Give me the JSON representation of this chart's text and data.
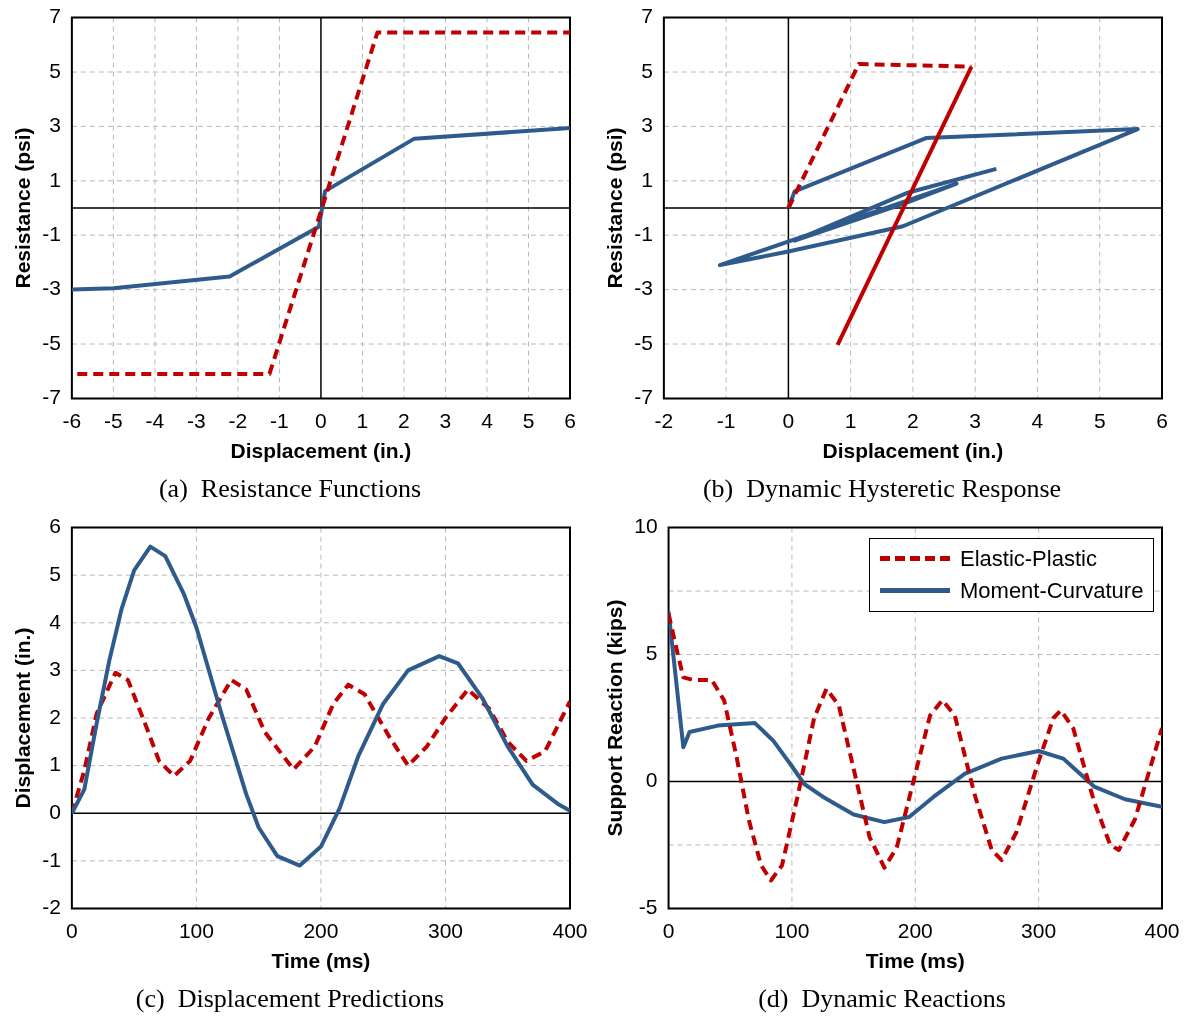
{
  "chart_data": [
    {
      "type": "line",
      "title": "(a)  Resistance Functions",
      "xlabel": "Displacement (in.)",
      "ylabel": "Resistance (psi)",
      "xlim": [
        -6,
        6
      ],
      "xticks": [
        -6,
        -5,
        -4,
        -3,
        -2,
        -1,
        0,
        1,
        2,
        3,
        4,
        5,
        6
      ],
      "ylim": [
        -7,
        7
      ],
      "yticks": [
        -7,
        -5,
        -3,
        -1,
        {
          "value": 0,
          "label": null
        },
        1,
        3,
        5,
        7
      ],
      "grid": true,
      "legend": false,
      "marker": "none",
      "series": [
        {
          "color": "#c00000",
          "line_style": "dashed",
          "x": [
            -5.87,
            -1.24,
            1.36,
            6
          ],
          "values": [
            -6.1,
            -6.1,
            6.45,
            6.45
          ]
        },
        {
          "color": "#2f5b8c",
          "line_style": "solid",
          "x": [
            -6,
            -5,
            -2.2,
            -0.05,
            0.1,
            2.25,
            6
          ],
          "values": [
            -3.0,
            -2.95,
            -2.52,
            -0.69,
            0.62,
            2.55,
            2.94
          ]
        }
      ]
    },
    {
      "type": "line",
      "title": "(b)  Dynamic Hysteretic Response",
      "xlabel": "Displacement (in.)",
      "ylabel": "Resistance (psi)",
      "xlim": [
        -2,
        6
      ],
      "xticks": [
        -2,
        -1,
        0,
        1,
        2,
        3,
        4,
        5,
        6
      ],
      "ylim": [
        -7,
        7
      ],
      "yticks": [
        -7,
        -5,
        -3,
        -1,
        {
          "value": 0,
          "label": null
        },
        1,
        3,
        5,
        7
      ],
      "grid": true,
      "legend": false,
      "marker": "none",
      "series": [
        {
          "color": "#c00000",
          "line_style": "dashed",
          "x": [
            0,
            1.13,
            2.94
          ],
          "values": [
            0,
            5.29,
            5.2
          ]
        },
        {
          "color": "#c00000",
          "line_style": "solid",
          "x": [
            2.94,
            0.79
          ],
          "values": [
            5.2,
            -5.03
          ]
        },
        {
          "color": "#2f5b8c",
          "line_style": "solid",
          "x": [
            0,
            0.1,
            2.21,
            5.61,
            1.84,
            0,
            -1.1,
            2.7,
            1.9,
            0.1,
            1.9,
            3.34
          ],
          "values": [
            0,
            0.61,
            2.57,
            2.9,
            -0.67,
            -1.6,
            -2.1,
            0.9,
            0.2,
            -1.2,
            0.55,
            1.44
          ]
        }
      ]
    },
    {
      "type": "line",
      "title": "(c)  Displacement Predictions",
      "xlabel": "Time (ms)",
      "ylabel": "Displacement (in.)",
      "xlim": [
        0,
        400
      ],
      "xticks": [
        0,
        100,
        200,
        300,
        400
      ],
      "ylim": [
        -2,
        6
      ],
      "yticks": [
        -2,
        -1,
        0,
        1,
        2,
        3,
        4,
        5,
        6
      ],
      "grid": true,
      "legend": false,
      "marker": "none",
      "series": [
        {
          "color": "#2f5b8c",
          "line_style": "solid",
          "x": [
            0,
            10,
            20,
            30,
            40,
            50,
            63,
            75,
            90,
            100,
            120,
            140,
            150,
            165,
            183,
            200,
            215,
            230,
            250,
            270,
            295,
            310,
            330,
            350,
            370,
            390,
            400
          ],
          "values": [
            0,
            0.5,
            1.9,
            3.2,
            4.3,
            5.1,
            5.6,
            5.4,
            4.6,
            3.9,
            2.1,
            0.4,
            -0.3,
            -0.9,
            -1.1,
            -0.7,
            0.1,
            1.2,
            2.3,
            3.0,
            3.3,
            3.15,
            2.4,
            1.4,
            0.6,
            0.2,
            0.05
          ]
        },
        {
          "color": "#c00000",
          "line_style": "dashed",
          "x": [
            0,
            10,
            20,
            35,
            45,
            60,
            70,
            82,
            95,
            110,
            128,
            140,
            155,
            178,
            195,
            210,
            222,
            235,
            255,
            270,
            285,
            300,
            318,
            335,
            350,
            365,
            380,
            400
          ],
          "values": [
            0,
            0.9,
            2.1,
            2.95,
            2.8,
            1.8,
            1.1,
            0.78,
            1.1,
            2.0,
            2.8,
            2.6,
            1.7,
            0.92,
            1.4,
            2.3,
            2.7,
            2.5,
            1.6,
            1.0,
            1.4,
            2.0,
            2.6,
            2.2,
            1.5,
            1.1,
            1.3,
            2.35
          ]
        }
      ]
    },
    {
      "type": "line",
      "title": "(d)  Dynamic Reactions",
      "xlabel": "Time (ms)",
      "ylabel": "Support Reaction (kips)",
      "xlim": [
        0,
        400
      ],
      "xticks": [
        0,
        100,
        200,
        300,
        400
      ],
      "ylim": [
        -5,
        10
      ],
      "yticks": [
        -5,
        {
          "value": -2.5,
          "label": null
        },
        0,
        {
          "value": 2.5,
          "label": null
        },
        5,
        {
          "value": 7.5,
          "label": null
        },
        10
      ],
      "grid": true,
      "legend": "top right",
      "marker": "none",
      "series": [
        {
          "name": "Elastic-Plastic",
          "color": "#c00000",
          "line_style": "dashed",
          "x": [
            0,
            8,
            12,
            20,
            35,
            45,
            55,
            65,
            75,
            83,
            92,
            105,
            118,
            128,
            138,
            150,
            163,
            175,
            185,
            200,
            212,
            222,
            232,
            248,
            262,
            270,
            282,
            300,
            312,
            318,
            328,
            345,
            358,
            365,
            378,
            400
          ],
          "values": [
            6.6,
            4.9,
            4.1,
            4.0,
            4.0,
            3.2,
            1.0,
            -1.5,
            -3.3,
            -3.9,
            -3.3,
            -0.5,
            2.5,
            3.65,
            3.0,
            0.5,
            -2.2,
            -3.4,
            -2.6,
            0.3,
            2.6,
            3.2,
            2.6,
            -0.5,
            -2.7,
            -3.1,
            -2.0,
            0.8,
            2.5,
            2.8,
            2.1,
            -0.8,
            -2.5,
            -2.7,
            -1.5,
            2.1
          ]
        },
        {
          "name": "Moment-Curvature",
          "color": "#2f5b8c",
          "line_style": "solid",
          "x": [
            0,
            12,
            17,
            40,
            70,
            85,
            100,
            110,
            125,
            150,
            175,
            195,
            215,
            240,
            270,
            300,
            320,
            345,
            370,
            400
          ],
          "values": [
            6.7,
            1.35,
            1.95,
            2.2,
            2.3,
            1.6,
            0.6,
            -0.1,
            -0.6,
            -1.3,
            -1.6,
            -1.4,
            -0.6,
            0.3,
            0.9,
            1.2,
            0.9,
            -0.2,
            -0.7,
            -1.0
          ]
        }
      ]
    }
  ]
}
